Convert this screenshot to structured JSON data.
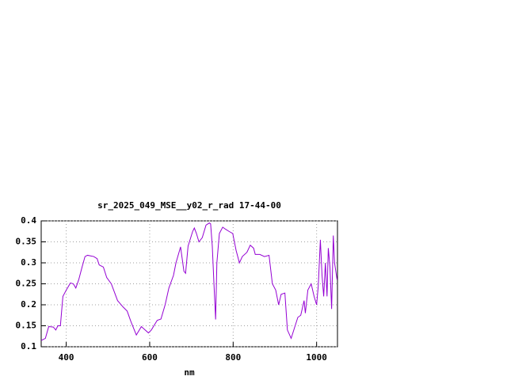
{
  "chart_data": {
    "type": "line",
    "title": "sr_2025_049_MSE__y02_r_rad 17-44-00",
    "x_label": "nm",
    "xlim": [
      340,
      1050
    ],
    "ylim": [
      0.1,
      0.4
    ],
    "xticks": [
      400,
      600,
      800,
      1000
    ],
    "yticks": [
      0.1,
      0.15,
      0.2,
      0.25,
      0.3,
      0.35,
      0.4
    ],
    "grid": true,
    "series": [
      {
        "color": "#9400d3",
        "x": [
          340,
          350,
          358,
          369,
          375,
          380,
          386,
          392,
          400,
          410,
          417,
          423,
          430,
          438,
          445,
          451,
          466,
          474,
          479,
          489,
          497,
          508,
          523,
          536,
          546,
          555,
          568,
          580,
          589,
          597,
          604,
          618,
          627,
          637,
          646,
          657,
          663,
          674,
          682,
          686,
          692,
          703,
          707,
          712,
          718,
          726,
          735,
          743,
          746,
          750,
          754,
          758,
          761,
          767,
          775,
          782,
          790,
          799,
          807,
          815,
          822,
          833,
          841,
          849,
          853,
          864,
          875,
          886,
          894,
          902,
          909,
          915,
          924,
          930,
          939,
          947,
          955,
          962,
          970,
          973,
          979,
          987,
          994,
          1000,
          1004,
          1009,
          1013,
          1017,
          1021,
          1025,
          1028,
          1032,
          1036,
          1040,
          1043,
          1049
        ],
        "values": [
          0.115,
          0.12,
          0.148,
          0.147,
          0.14,
          0.15,
          0.15,
          0.22,
          0.235,
          0.252,
          0.25,
          0.24,
          0.26,
          0.29,
          0.315,
          0.318,
          0.315,
          0.31,
          0.295,
          0.29,
          0.265,
          0.25,
          0.21,
          0.195,
          0.185,
          0.16,
          0.128,
          0.148,
          0.14,
          0.133,
          0.14,
          0.163,
          0.166,
          0.2,
          0.24,
          0.27,
          0.3,
          0.338,
          0.28,
          0.275,
          0.34,
          0.375,
          0.383,
          0.37,
          0.35,
          0.36,
          0.39,
          0.395,
          0.393,
          0.34,
          0.25,
          0.165,
          0.3,
          0.37,
          0.385,
          0.38,
          0.375,
          0.37,
          0.33,
          0.3,
          0.315,
          0.325,
          0.342,
          0.335,
          0.32,
          0.32,
          0.315,
          0.318,
          0.25,
          0.235,
          0.2,
          0.225,
          0.228,
          0.14,
          0.12,
          0.145,
          0.17,
          0.175,
          0.21,
          0.18,
          0.235,
          0.25,
          0.22,
          0.2,
          0.245,
          0.355,
          0.27,
          0.22,
          0.3,
          0.22,
          0.335,
          0.29,
          0.19,
          0.365,
          0.3,
          0.26
        ]
      }
    ]
  }
}
